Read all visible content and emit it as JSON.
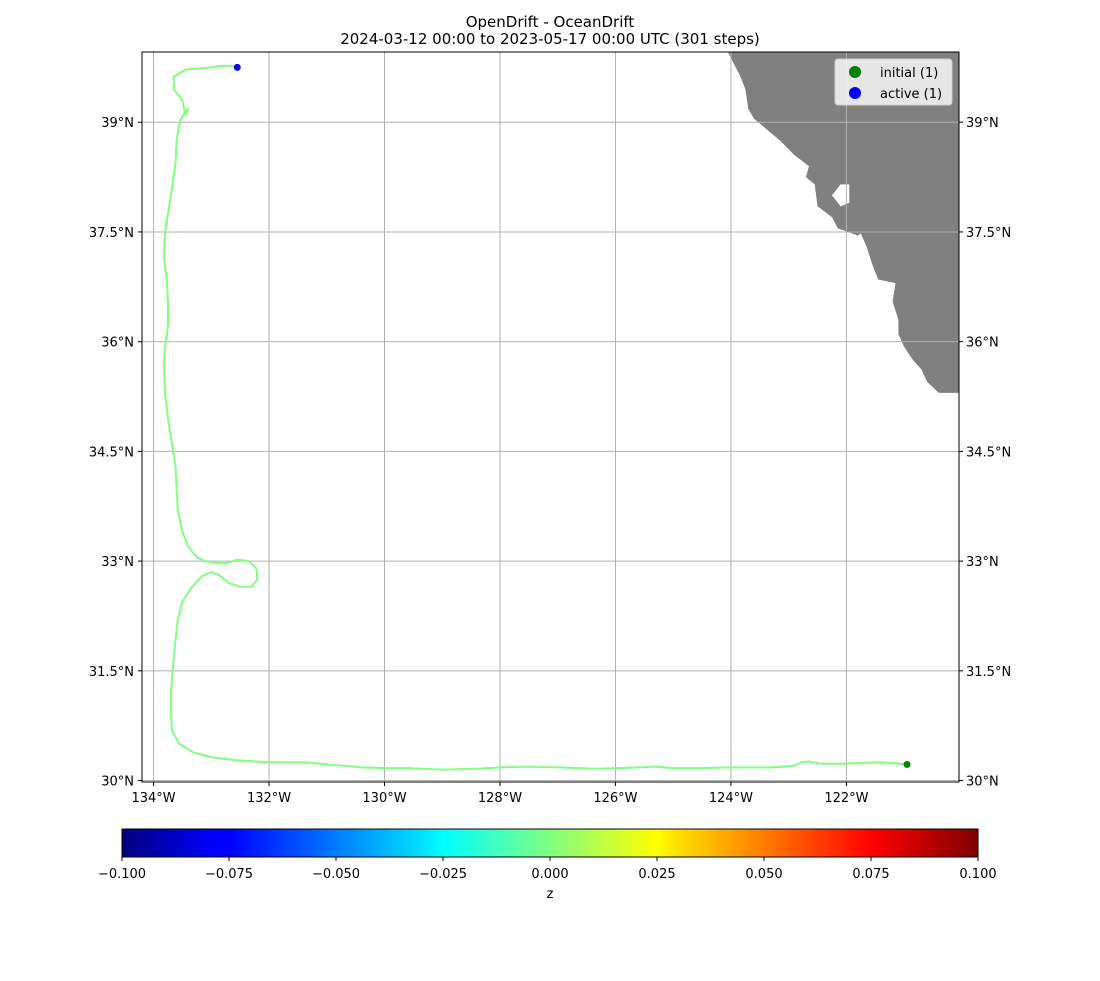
{
  "title": {
    "line1": "OpenDrift - OceanDrift",
    "line2": "2024-03-12 00:00 to 2023-05-17 00:00 UTC (301 steps)"
  },
  "colors": {
    "land": "#808080",
    "grid": "#b0b0b0",
    "trajectory": "#80ff80",
    "initial": "#008000",
    "active": "#0000ff",
    "frame": "#000000"
  },
  "legend": {
    "location": "upper right",
    "items": [
      {
        "label": "initial (1)",
        "color": "#008000"
      },
      {
        "label": "active (1)",
        "color": "#0000ff"
      }
    ]
  },
  "chart_data": {
    "type": "map",
    "projection": "lon-lat",
    "lon_range": [
      -134.2,
      -120.05
    ],
    "lat_range": [
      29.98,
      39.96
    ],
    "lon_ticks": [
      {
        "value": -134,
        "label": "134°W"
      },
      {
        "value": -132,
        "label": "132°W"
      },
      {
        "value": -130,
        "label": "130°W"
      },
      {
        "value": -128,
        "label": "128°W"
      },
      {
        "value": -126,
        "label": "126°W"
      },
      {
        "value": -124,
        "label": "124°W"
      },
      {
        "value": -122,
        "label": "122°W"
      }
    ],
    "lat_ticks": [
      {
        "value": 30,
        "label": "30°N"
      },
      {
        "value": 31.5,
        "label": "31.5°N"
      },
      {
        "value": 33,
        "label": "33°N"
      },
      {
        "value": 34.5,
        "label": "34.5°N"
      },
      {
        "value": 36,
        "label": "36°N"
      },
      {
        "value": 37.5,
        "label": "37.5°N"
      },
      {
        "value": 39,
        "label": "39°N"
      }
    ],
    "grid": true,
    "trajectory": [
      [
        -120.95,
        30.22
      ],
      [
        -121.4,
        30.25
      ],
      [
        -121.8,
        30.24
      ],
      [
        -122.1,
        30.23
      ],
      [
        -122.45,
        30.23
      ],
      [
        -122.65,
        30.26
      ],
      [
        -122.78,
        30.25
      ],
      [
        -122.92,
        30.2
      ],
      [
        -123.3,
        30.18
      ],
      [
        -124.0,
        30.18
      ],
      [
        -124.5,
        30.17
      ],
      [
        -125.0,
        30.17
      ],
      [
        -125.3,
        30.19
      ],
      [
        -125.6,
        30.18
      ],
      [
        -126.3,
        30.16
      ],
      [
        -127.0,
        30.18
      ],
      [
        -127.5,
        30.19
      ],
      [
        -128.0,
        30.18
      ],
      [
        -128.4,
        30.16
      ],
      [
        -129.0,
        30.15
      ],
      [
        -129.6,
        30.17
      ],
      [
        -130.0,
        30.17
      ],
      [
        -130.4,
        30.18
      ],
      [
        -131.0,
        30.22
      ],
      [
        -131.4,
        30.25
      ],
      [
        -132.0,
        30.25
      ],
      [
        -132.6,
        30.28
      ],
      [
        -133.0,
        30.32
      ],
      [
        -133.3,
        30.38
      ],
      [
        -133.55,
        30.5
      ],
      [
        -133.68,
        30.68
      ],
      [
        -133.7,
        30.9
      ],
      [
        -133.7,
        31.2
      ],
      [
        -133.67,
        31.5
      ],
      [
        -133.63,
        31.85
      ],
      [
        -133.58,
        32.2
      ],
      [
        -133.5,
        32.45
      ],
      [
        -133.33,
        32.65
      ],
      [
        -133.15,
        32.8
      ],
      [
        -133.0,
        32.85
      ],
      [
        -132.85,
        32.8
      ],
      [
        -132.7,
        32.7
      ],
      [
        -132.5,
        32.65
      ],
      [
        -132.3,
        32.65
      ],
      [
        -132.2,
        32.75
      ],
      [
        -132.22,
        32.9
      ],
      [
        -132.35,
        33.0
      ],
      [
        -132.55,
        33.02
      ],
      [
        -132.75,
        32.97
      ],
      [
        -132.95,
        32.98
      ],
      [
        -133.1,
        33.0
      ],
      [
        -133.25,
        33.05
      ],
      [
        -133.4,
        33.2
      ],
      [
        -133.5,
        33.4
      ],
      [
        -133.58,
        33.7
      ],
      [
        -133.6,
        34.0
      ],
      [
        -133.62,
        34.3
      ],
      [
        -133.68,
        34.6
      ],
      [
        -133.75,
        34.95
      ],
      [
        -133.8,
        35.3
      ],
      [
        -133.82,
        35.7
      ],
      [
        -133.8,
        35.95
      ],
      [
        -133.75,
        36.2
      ],
      [
        -133.75,
        36.55
      ],
      [
        -133.77,
        36.85
      ],
      [
        -133.82,
        37.15
      ],
      [
        -133.8,
        37.5
      ],
      [
        -133.75,
        37.75
      ],
      [
        -133.68,
        38.1
      ],
      [
        -133.62,
        38.45
      ],
      [
        -133.6,
        38.75
      ],
      [
        -133.55,
        39.0
      ],
      [
        -133.45,
        39.15
      ],
      [
        -133.4,
        39.18
      ],
      [
        -133.45,
        39.1
      ],
      [
        -133.5,
        39.3
      ],
      [
        -133.65,
        39.45
      ],
      [
        -133.65,
        39.62
      ],
      [
        -133.45,
        39.72
      ],
      [
        -133.0,
        39.75
      ],
      [
        -132.85,
        39.77
      ],
      [
        -132.68,
        39.77
      ],
      [
        -132.55,
        39.75
      ]
    ],
    "points": [
      {
        "name": "initial",
        "lon": -120.95,
        "lat": 30.22,
        "color": "#008000"
      },
      {
        "name": "active",
        "lon": -132.55,
        "lat": 39.75,
        "color": "#0000ff"
      }
    ],
    "land": [
      [
        -124.05,
        39.96
      ],
      [
        -120.05,
        39.96
      ],
      [
        -120.05,
        35.55
      ],
      [
        -120.05,
        34.6
      ],
      [
        -120.05,
        35.3
      ],
      [
        -120.4,
        35.3
      ],
      [
        -120.6,
        35.45
      ],
      [
        -120.7,
        35.62
      ],
      [
        -120.85,
        35.75
      ],
      [
        -121.0,
        35.93
      ],
      [
        -121.1,
        36.1
      ],
      [
        -121.1,
        36.3
      ],
      [
        -121.2,
        36.55
      ],
      [
        -121.15,
        36.8
      ],
      [
        -121.45,
        36.85
      ],
      [
        -121.55,
        37.05
      ],
      [
        -121.65,
        37.3
      ],
      [
        -121.75,
        37.48
      ],
      [
        -121.8,
        37.45
      ],
      [
        -122.15,
        37.55
      ],
      [
        -122.25,
        37.7
      ],
      [
        -122.5,
        37.85
      ],
      [
        -122.55,
        38.15
      ],
      [
        -122.7,
        38.25
      ],
      [
        -122.65,
        38.4
      ],
      [
        -122.9,
        38.55
      ],
      [
        -123.15,
        38.75
      ],
      [
        -123.3,
        38.85
      ],
      [
        -123.6,
        39.05
      ],
      [
        -123.7,
        39.18
      ],
      [
        -123.75,
        39.45
      ],
      [
        -123.85,
        39.65
      ],
      [
        -123.95,
        39.8
      ],
      [
        -124.05,
        39.96
      ]
    ],
    "land_hole": [
      [
        -122.1,
        38.15
      ],
      [
        -121.95,
        38.15
      ],
      [
        -121.95,
        37.9
      ],
      [
        -122.1,
        37.85
      ],
      [
        -122.25,
        38.0
      ]
    ]
  },
  "colorbar": {
    "label": "z",
    "min": -0.1,
    "max": 0.1,
    "colormap": "jet",
    "ticks": [
      "−0.100",
      "−0.075",
      "−0.050",
      "−0.025",
      "0.000",
      "0.025",
      "0.050",
      "0.075",
      "0.100"
    ]
  }
}
